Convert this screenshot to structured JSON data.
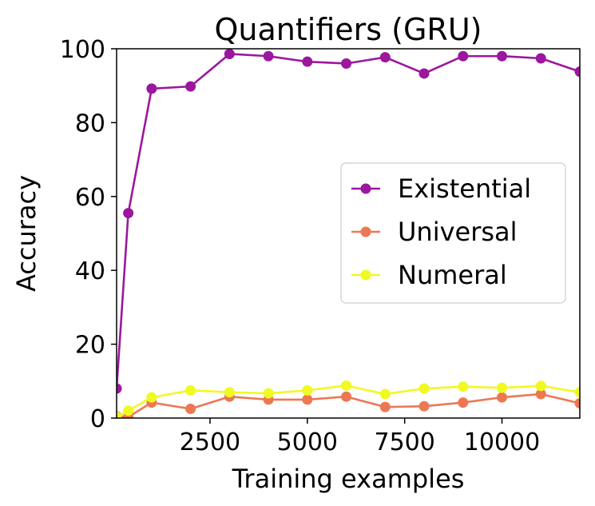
{
  "chart_data": {
    "type": "line",
    "title": "Quantifiers (GRU)",
    "xlabel": "Training examples",
    "ylabel": "Accuracy",
    "xlim": [
      100,
      12000
    ],
    "ylim": [
      0,
      100
    ],
    "xticks": [
      2500,
      5000,
      7500,
      10000
    ],
    "yticks": [
      0,
      20,
      40,
      60,
      80,
      100
    ],
    "grid": false,
    "legend_position": "center-right",
    "series": [
      {
        "name": "Existential",
        "color": "#9b179e",
        "x": [
          100,
          400,
          1000,
          2000,
          3000,
          4000,
          5000,
          6000,
          7000,
          8000,
          9000,
          10000,
          11000,
          12000
        ],
        "values": [
          8,
          55.5,
          89.2,
          89.8,
          98.6,
          98,
          96.5,
          96,
          97.7,
          93.3,
          98,
          98,
          97.4,
          93.8
        ]
      },
      {
        "name": "Universal",
        "color": "#ec7853",
        "x": [
          100,
          400,
          1000,
          2000,
          3000,
          4000,
          5000,
          6000,
          7000,
          8000,
          9000,
          10000,
          11000,
          12000
        ],
        "values": [
          0.5,
          0.3,
          4.2,
          2.5,
          5.8,
          5,
          5,
          5.8,
          3,
          3.2,
          4.2,
          5.6,
          6.5,
          4
        ]
      },
      {
        "name": "Numeral",
        "color": "#f0f921",
        "x": [
          100,
          400,
          1000,
          2000,
          3000,
          4000,
          5000,
          6000,
          7000,
          8000,
          9000,
          10000,
          11000,
          12000
        ],
        "values": [
          0.3,
          2,
          5.6,
          7.5,
          7,
          6.7,
          7.5,
          8.8,
          6.5,
          8,
          8.5,
          8.2,
          8.7,
          7
        ]
      }
    ]
  }
}
